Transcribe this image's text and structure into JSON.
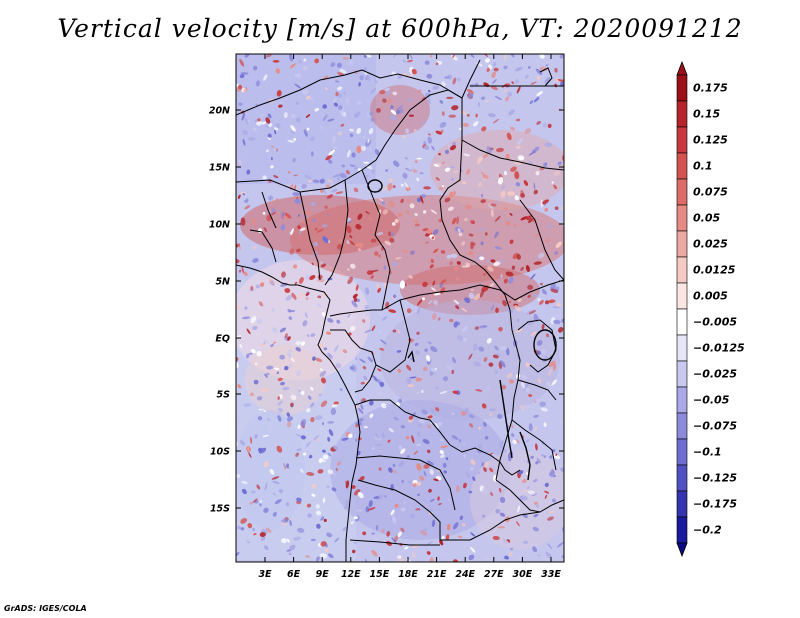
{
  "title": "Vertical velocity [m/s] at 600hPa, VT: 2020091212",
  "credit": "GrADS: IGES/COLA",
  "map": {
    "lat_labels": [
      "20N",
      "15N",
      "10N",
      "5N",
      "EQ",
      "5S",
      "10S",
      "15S"
    ],
    "lon_labels": [
      "3E",
      "6E",
      "9E",
      "12E",
      "15E",
      "18E",
      "21E",
      "24E",
      "27E",
      "30E",
      "33E"
    ],
    "region": "Central Africa",
    "field_palette": "blue-white-red"
  },
  "colorbar": {
    "labels": [
      "0.175",
      "0.15",
      "0.125",
      "0.1",
      "0.075",
      "0.05",
      "0.025",
      "0.0125",
      "0.005",
      "−0.005",
      "−0.0125",
      "−0.025",
      "−0.05",
      "−0.075",
      "−0.1",
      "−0.125",
      "−0.175",
      "−0.2"
    ],
    "colors": [
      "#9b0f18",
      "#b5242c",
      "#c8383e",
      "#d4524f",
      "#dd6c68",
      "#e68a84",
      "#eea8a3",
      "#f5c9c4",
      "#fbe6e3",
      "#ffffff",
      "#e6e6f7",
      "#c9c9ef",
      "#aaa9e5",
      "#8c8bdb",
      "#6e6dd1",
      "#5150c2",
      "#3433b0",
      "#1a1a9c",
      "#0b0b80"
    ]
  }
}
